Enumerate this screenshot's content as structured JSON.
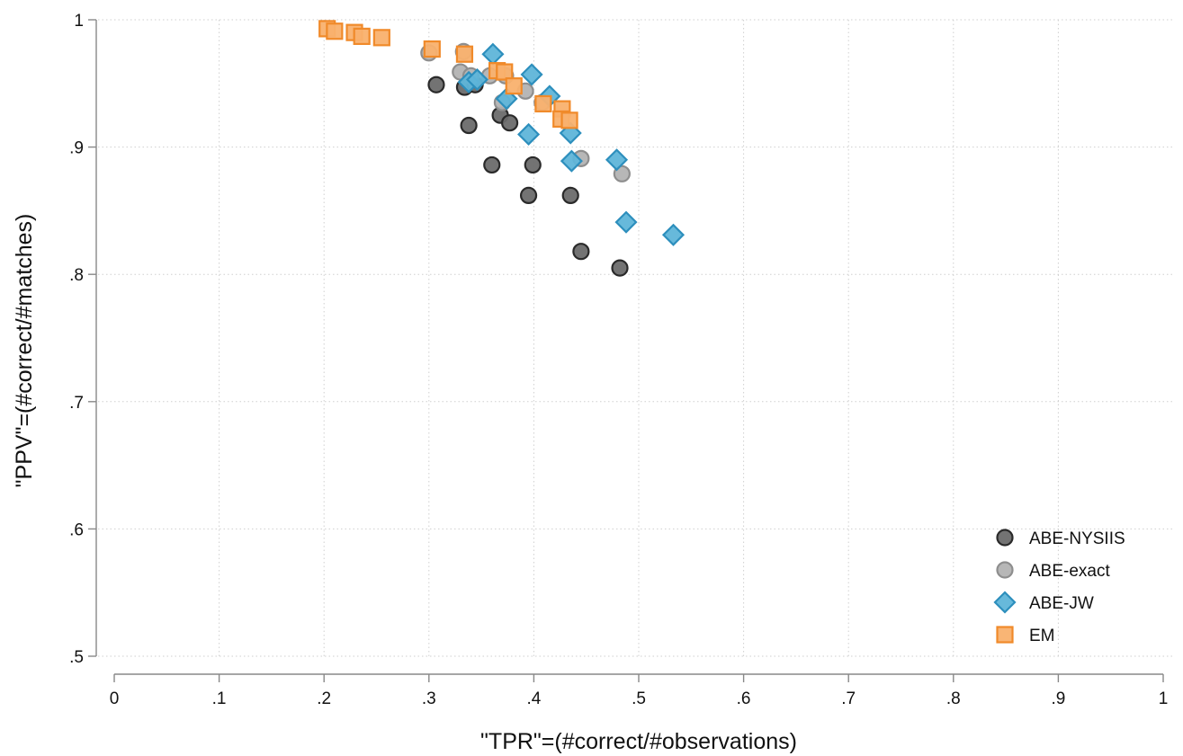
{
  "chart_data": {
    "type": "scatter",
    "xlabel": "\"TPR\"=(#correct/#observations)",
    "ylabel": "\"PPV\"=(#correct/#matches)",
    "xlim": [
      0,
      1
    ],
    "ylim": [
      0.5,
      1
    ],
    "x_ticks": [
      "0",
      ".1",
      ".2",
      ".3",
      ".4",
      ".5",
      ".6",
      ".7",
      ".8",
      ".9",
      "1"
    ],
    "y_ticks": [
      ".5",
      ".6",
      ".7",
      ".8",
      ".9",
      "1"
    ],
    "grid": true,
    "legend_position": "bottom-right",
    "series": [
      {
        "name": "ABE-NYSIIS",
        "marker": "circle",
        "color": "#6b6b6b",
        "edge": "#2a2a2a",
        "points": [
          [
            0.307,
            0.949
          ],
          [
            0.334,
            0.947
          ],
          [
            0.344,
            0.949
          ],
          [
            0.338,
            0.917
          ],
          [
            0.368,
            0.925
          ],
          [
            0.377,
            0.919
          ],
          [
            0.36,
            0.886
          ],
          [
            0.399,
            0.886
          ],
          [
            0.395,
            0.862
          ],
          [
            0.435,
            0.862
          ],
          [
            0.445,
            0.818
          ],
          [
            0.482,
            0.805
          ]
        ]
      },
      {
        "name": "ABE-exact",
        "marker": "circle",
        "color": "#b3b3b3",
        "edge": "#8e8e8e",
        "points": [
          [
            0.3,
            0.974
          ],
          [
            0.333,
            0.975
          ],
          [
            0.33,
            0.959
          ],
          [
            0.34,
            0.956
          ],
          [
            0.358,
            0.956
          ],
          [
            0.373,
            0.956
          ],
          [
            0.37,
            0.935
          ],
          [
            0.392,
            0.944
          ],
          [
            0.408,
            0.935
          ],
          [
            0.445,
            0.891
          ],
          [
            0.484,
            0.879
          ]
        ]
      },
      {
        "name": "ABE-JW",
        "marker": "diamond",
        "color": "#5fb5d9",
        "edge": "#2d8fbd",
        "points": [
          [
            0.361,
            0.973
          ],
          [
            0.398,
            0.957
          ],
          [
            0.338,
            0.951
          ],
          [
            0.346,
            0.953
          ],
          [
            0.374,
            0.938
          ],
          [
            0.415,
            0.94
          ],
          [
            0.395,
            0.91
          ],
          [
            0.435,
            0.911
          ],
          [
            0.436,
            0.889
          ],
          [
            0.479,
            0.89
          ],
          [
            0.488,
            0.841
          ],
          [
            0.533,
            0.831
          ]
        ]
      },
      {
        "name": "EM",
        "marker": "square",
        "color": "#f9b16e",
        "edge": "#f08a2a",
        "points": [
          [
            0.203,
            0.993
          ],
          [
            0.21,
            0.991
          ],
          [
            0.229,
            0.99
          ],
          [
            0.236,
            0.987
          ],
          [
            0.255,
            0.986
          ],
          [
            0.303,
            0.977
          ],
          [
            0.334,
            0.973
          ],
          [
            0.365,
            0.96
          ],
          [
            0.372,
            0.959
          ],
          [
            0.381,
            0.948
          ],
          [
            0.409,
            0.934
          ],
          [
            0.427,
            0.93
          ],
          [
            0.426,
            0.922
          ],
          [
            0.434,
            0.921
          ]
        ]
      }
    ]
  }
}
